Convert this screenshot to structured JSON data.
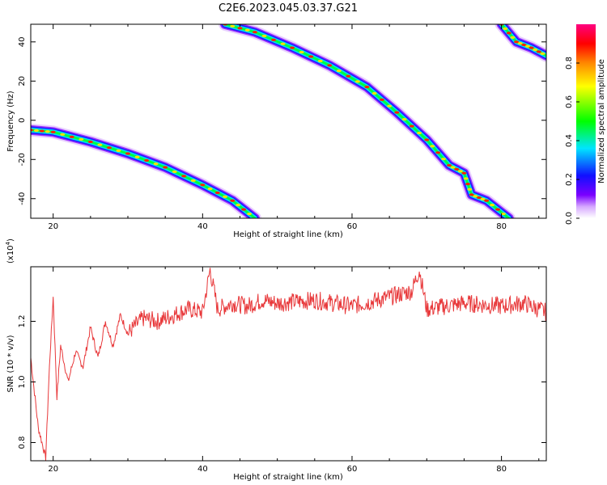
{
  "title": "C2E6.2023.045.03.37.G21",
  "chart_data": [
    {
      "type": "heatmap",
      "xlabel": "Height of straight line (km)",
      "ylabel": "Frequency (Hz)",
      "xlim": [
        17,
        86
      ],
      "ylim": [
        -50,
        49
      ],
      "x_ticks": [
        20,
        40,
        60,
        80
      ],
      "y_ticks": [
        40,
        20,
        0,
        -20,
        -40
      ],
      "colorbar": {
        "label": "Normalized spectral amplitude",
        "range": [
          0,
          1
        ],
        "ticks": [
          0.0,
          0.2,
          0.4,
          0.6,
          0.8
        ],
        "colors": [
          "#ffffff",
          "#d6a8ff",
          "#7a00ff",
          "#1010ff",
          "#00e5ff",
          "#00ff00",
          "#ffff00",
          "#ff8800",
          "#ff0000",
          "#ff0080"
        ]
      },
      "ridges": [
        {
          "x": [
            17,
            20,
            25,
            30,
            35,
            40,
            44,
            47
          ],
          "y": [
            -5,
            -6,
            -11,
            -17,
            -24,
            -33,
            -41,
            -50
          ]
        },
        {
          "x": [
            43,
            47,
            52,
            57,
            62,
            66,
            70,
            73,
            75,
            76,
            78,
            81
          ],
          "y": [
            49,
            45,
            37,
            28,
            17,
            4,
            -10,
            -23,
            -27,
            -38,
            -41,
            -50
          ]
        },
        {
          "x": [
            80,
            82,
            84,
            86
          ],
          "y": [
            49,
            40,
            37,
            33
          ]
        }
      ]
    },
    {
      "type": "line",
      "xlabel": "Height of straight line (km)",
      "ylabel": "SNR (10 * v/v)",
      "y_multiplier": "(x10",
      "y_multiplier_exp": "4",
      "y_multiplier_close": ")",
      "xlim": [
        17,
        86
      ],
      "ylim": [
        0.74,
        1.38
      ],
      "x_ticks": [
        20,
        40,
        60,
        80
      ],
      "y_ticks": [
        0.8,
        1.0,
        1.2
      ],
      "color": "#e8383a",
      "series": [
        {
          "x": [
            17,
            18,
            19,
            19.5,
            20,
            20.5,
            21,
            22,
            23,
            24,
            25,
            26,
            27,
            28,
            29,
            30,
            32,
            34,
            36,
            38,
            40,
            41,
            42,
            44,
            46,
            48,
            50,
            55,
            60,
            65,
            68,
            69,
            70,
            75,
            80,
            83,
            86
          ],
          "y": [
            1.08,
            0.85,
            0.75,
            1.05,
            1.28,
            0.95,
            1.12,
            1.0,
            1.1,
            1.05,
            1.18,
            1.08,
            1.2,
            1.12,
            1.22,
            1.16,
            1.21,
            1.2,
            1.22,
            1.24,
            1.23,
            1.37,
            1.24,
            1.26,
            1.25,
            1.27,
            1.26,
            1.27,
            1.25,
            1.28,
            1.3,
            1.37,
            1.24,
            1.26,
            1.25,
            1.26,
            1.23
          ]
        }
      ]
    }
  ]
}
